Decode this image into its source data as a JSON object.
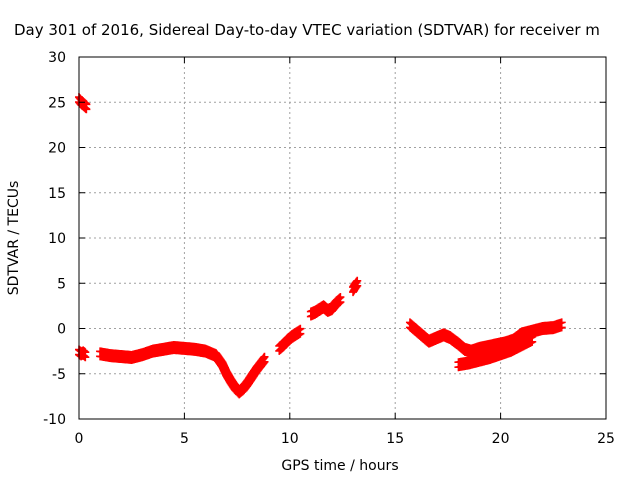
{
  "chart_data": {
    "type": "scatter",
    "title": "Day 301 of 2016, Sidereal Day-to-day VTEC variation (SDTVAR) for receiver m",
    "xlabel": "GPS time / hours",
    "ylabel": "SDTVAR / TECUs",
    "xlim": [
      0,
      25
    ],
    "ylim": [
      -10,
      30
    ],
    "xticks": [
      "0",
      "5",
      "10",
      "15",
      "20",
      "25"
    ],
    "yticks": [
      "-10",
      "-5",
      "0",
      "5",
      "10",
      "15",
      "20",
      "25",
      "30"
    ],
    "grid": true,
    "legend": "none",
    "marker": "plus",
    "color": "#ff0000",
    "segments": [
      {
        "x": [
          0.0,
          0.1,
          0.2,
          0.3,
          0.35
        ],
        "y": [
          25.3,
          25.0,
          24.8,
          24.6,
          24.5
        ]
      },
      {
        "x": [
          0.0,
          0.1,
          0.2,
          0.3
        ],
        "y": [
          -2.6,
          -2.8,
          -2.7,
          -2.9
        ]
      },
      {
        "x": [
          1.0,
          1.5,
          2.0,
          2.5,
          3.0,
          3.5,
          4.0,
          4.5,
          5.0,
          5.5,
          6.0,
          6.5,
          6.8,
          7.0,
          7.2,
          7.4,
          7.6,
          7.8,
          8.0,
          8.2,
          8.4,
          8.6,
          8.8
        ],
        "y": [
          -2.8,
          -3.0,
          -3.1,
          -3.2,
          -2.9,
          -2.5,
          -2.3,
          -2.1,
          -2.2,
          -2.3,
          -2.5,
          -3.0,
          -4.0,
          -5.0,
          -5.8,
          -6.5,
          -7.0,
          -6.6,
          -6.0,
          -5.3,
          -4.6,
          -4.0,
          -3.4
        ]
      },
      {
        "x": [
          9.5,
          9.7,
          9.9,
          10.1,
          10.3,
          10.5
        ],
        "y": [
          -2.2,
          -1.8,
          -1.3,
          -0.9,
          -0.6,
          -0.3
        ]
      },
      {
        "x": [
          11.0,
          11.2,
          11.4,
          11.6,
          11.8,
          12.0,
          12.2,
          12.4
        ],
        "y": [
          1.6,
          1.8,
          2.1,
          2.4,
          2.0,
          2.2,
          2.8,
          3.2
        ]
      },
      {
        "x": [
          13.0,
          13.1,
          13.2
        ],
        "y": [
          4.3,
          4.7,
          5.0
        ]
      },
      {
        "x": [
          15.7,
          16.0,
          16.3,
          16.6,
          17.0,
          17.3,
          17.6,
          18.0,
          18.3,
          18.6,
          19.0,
          19.4,
          19.8,
          20.2,
          20.6,
          21.0,
          21.5,
          22.0,
          22.5,
          22.9
        ],
        "y": [
          0.4,
          -0.2,
          -0.8,
          -1.4,
          -1.0,
          -0.7,
          -1.0,
          -1.7,
          -2.3,
          -2.5,
          -2.2,
          -2.0,
          -1.8,
          -1.6,
          -1.3,
          -0.6,
          -0.3,
          0.0,
          0.1,
          0.4
        ]
      },
      {
        "x": [
          18.0,
          18.5,
          19.0,
          19.5,
          20.0,
          20.5,
          21.0,
          21.5
        ],
        "y": [
          -4.0,
          -3.8,
          -3.5,
          -3.2,
          -2.8,
          -2.4,
          -1.8,
          -1.2
        ]
      }
    ]
  }
}
